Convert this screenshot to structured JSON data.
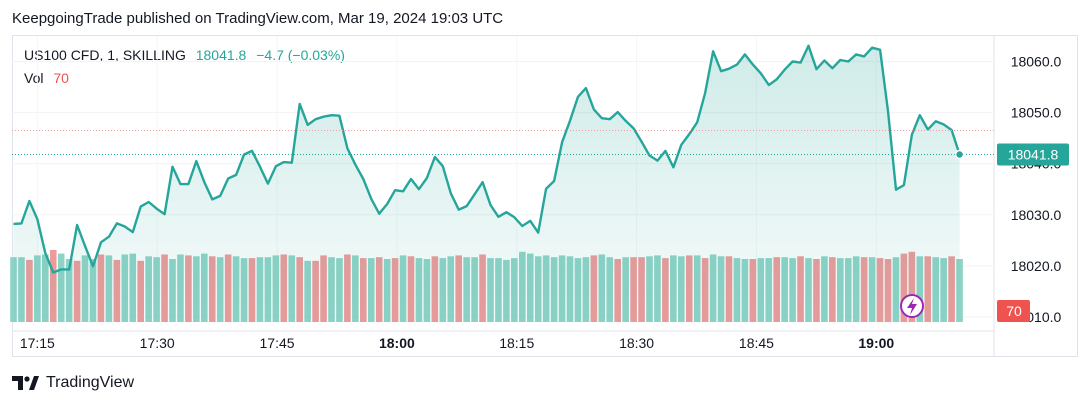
{
  "header": {
    "publisher_line": "KeepgoingTrade published on TradingView.com, Mar 19, 2024 19:03 UTC"
  },
  "legend": {
    "symbol": "US100 CFD, 1, SKILLING",
    "price": "18041.8",
    "change": "−4.7 (−0.03%)",
    "vol_label": "Vol",
    "vol_value": "70"
  },
  "price_badge": "18041.8",
  "volume_badge": "70",
  "footer": {
    "brand": "TradingView"
  },
  "colors": {
    "line": "#26a69a",
    "up_volume": "#8fd3c7",
    "down_volume": "#ef9a9a",
    "badge_price": "#26a69a",
    "badge_volume": "#ef5350"
  },
  "chart_data": {
    "type": "area",
    "x_ticks": [
      "17:15",
      "17:30",
      "17:45",
      "18:00",
      "18:15",
      "18:30",
      "18:45",
      "19:00"
    ],
    "x_ticks_bold": [
      "18:00",
      "19:00"
    ],
    "y_ticks": [
      18010,
      18020,
      18030,
      18040,
      18050,
      18060
    ],
    "y_tick_labels": [
      "18010.0",
      "18020.0",
      "18030.0",
      "18040.0",
      "18050.0",
      "18060.0"
    ],
    "ylim": [
      18009,
      18065
    ],
    "last_price": 18041.8,
    "series": [
      {
        "name": "US100 CFD",
        "start_time": "17:12",
        "values": [
          18028.2,
          18028.3,
          18032.7,
          18029.1,
          18022.5,
          18018.7,
          18019.3,
          18019.3,
          18028.0,
          18023.9,
          18019.9,
          18024.6,
          18025.7,
          18028.3,
          18027.7,
          18026.6,
          18031.6,
          18032.5,
          18031.2,
          18030.1,
          18039.4,
          18036.0,
          18036.0,
          18040.5,
          18036.4,
          18033.0,
          18033.7,
          18037.1,
          18037.8,
          18041.8,
          18042.5,
          18039.4,
          18036.1,
          18039.5,
          18040.3,
          18040.2,
          18051.7,
          18047.6,
          18048.7,
          18049.2,
          18049.5,
          18049.4,
          18043.0,
          18039.8,
          18037.0,
          18033.1,
          18030.2,
          18032.1,
          18034.8,
          18034.6,
          18037.0,
          18035.0,
          18037.2,
          18041.3,
          18039.5,
          18034.2,
          18031.0,
          18031.7,
          18034.0,
          18036.4,
          18031.9,
          18029.6,
          18030.5,
          18029.5,
          18027.8,
          18028.8,
          18026.5,
          18035.1,
          18036.6,
          18044.2,
          18048.4,
          18053.1,
          18054.8,
          18050.6,
          18048.9,
          18048.7,
          18050.1,
          18048.4,
          18046.9,
          18044.3,
          18041.6,
          18040.6,
          18042.5,
          18039.3,
          18043.7,
          18045.8,
          18048.1,
          18053.8,
          18062.0,
          18058.1,
          18058.6,
          18059.4,
          18061.4,
          18059.4,
          18057.7,
          18055.4,
          18056.5,
          18058.4,
          18060.0,
          18059.8,
          18063.1,
          18058.5,
          18060.2,
          18058.7,
          18060.3,
          18060.0,
          18061.4,
          18061.0,
          18062.7,
          18062.3,
          18050.3,
          18034.9,
          18035.8,
          18045.7,
          18049.5,
          18046.7,
          18048.3,
          18047.7,
          18046.6,
          18041.8
        ]
      },
      {
        "name": "Vol",
        "values": [
          72,
          72,
          69,
          74,
          75,
          80,
          76,
          70,
          68,
          74,
          70,
          75,
          74,
          69,
          75,
          76,
          68,
          73,
          72,
          75,
          70,
          75,
          74,
          73,
          76,
          73,
          72,
          75,
          73,
          71,
          71,
          72,
          72,
          74,
          75,
          74,
          72,
          68,
          68,
          74,
          72,
          71,
          75,
          74,
          71,
          71,
          72,
          70,
          71,
          74,
          73,
          71,
          70,
          73,
          71,
          73,
          74,
          72,
          72,
          75,
          71,
          71,
          69,
          71,
          78,
          76,
          73,
          74,
          72,
          74,
          73,
          71,
          72,
          74,
          75,
          72,
          70,
          72,
          72,
          72,
          73,
          74,
          71,
          74,
          73,
          74,
          74,
          71,
          75,
          73,
          73,
          71,
          70,
          70,
          71,
          71,
          72,
          72,
          71,
          73,
          71,
          70,
          73,
          72,
          71,
          71,
          73,
          72,
          72,
          71,
          70,
          72,
          76,
          78,
          73,
          73,
          72,
          71,
          73,
          70
        ]
      }
    ],
    "volume_down": [
      false,
      false,
      true,
      false,
      false,
      true,
      false,
      false,
      true,
      false,
      false,
      true,
      false,
      true,
      false,
      false,
      true,
      false,
      false,
      true,
      false,
      false,
      true,
      false,
      false,
      true,
      false,
      true,
      false,
      false,
      true,
      false,
      false,
      false,
      true,
      false,
      true,
      false,
      true,
      true,
      false,
      false,
      true,
      false,
      true,
      false,
      true,
      false,
      true,
      false,
      true,
      false,
      false,
      true,
      false,
      false,
      true,
      false,
      false,
      true,
      false,
      false,
      false,
      false,
      false,
      false,
      false,
      false,
      false,
      false,
      false,
      false,
      false,
      true,
      false,
      false,
      true,
      false,
      true,
      true,
      false,
      false,
      true,
      false,
      false,
      true,
      false,
      true,
      false,
      false,
      true,
      false,
      false,
      true,
      false,
      false,
      true,
      false,
      false,
      true,
      false,
      true,
      false,
      true,
      false,
      false,
      false,
      true,
      false,
      true,
      true,
      false,
      true,
      true,
      false,
      true,
      false,
      false,
      true,
      false
    ]
  }
}
